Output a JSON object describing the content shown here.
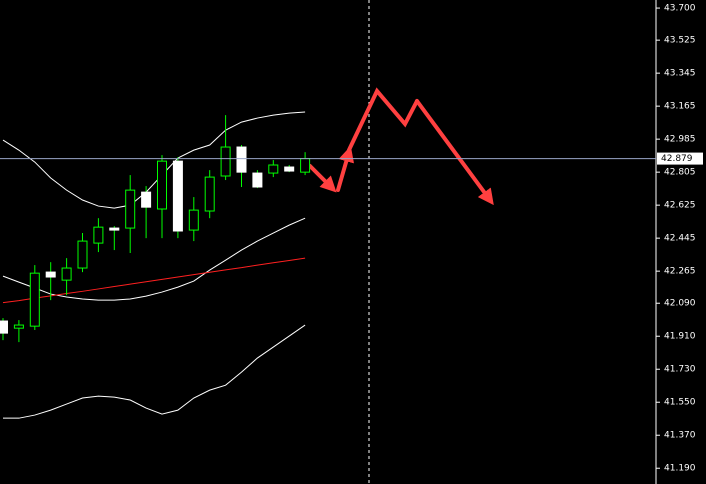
{
  "chart_data": {
    "type": "candlestick",
    "categories": [
      null,
      null,
      null,
      null,
      null,
      null,
      null,
      null,
      null,
      null,
      null,
      null,
      null,
      null,
      null,
      null,
      null,
      null,
      null,
      null
    ],
    "open": [
      41.993,
      41.954,
      41.965,
      42.26,
      42.216,
      42.282,
      42.418,
      42.5,
      42.5,
      42.696,
      42.604,
      42.865,
      42.489,
      42.593,
      42.784,
      42.942,
      42.8,
      42.8,
      42.833,
      42.805
    ],
    "high": [
      42.009,
      41.998,
      42.298,
      42.314,
      42.336,
      42.473,
      42.554,
      42.511,
      42.789,
      42.729,
      42.898,
      42.887,
      42.669,
      42.816,
      43.116,
      42.953,
      42.816,
      42.871,
      42.844,
      42.914
    ],
    "low": [
      41.889,
      41.878,
      41.944,
      42.107,
      42.134,
      42.26,
      42.369,
      42.38,
      42.364,
      42.445,
      42.445,
      42.445,
      42.429,
      42.554,
      42.762,
      42.724,
      42.718,
      42.778,
      42.805,
      42.789
    ],
    "close": [
      41.927,
      41.971,
      42.254,
      42.233,
      42.282,
      42.429,
      42.505,
      42.489,
      42.707,
      42.614,
      42.865,
      42.484,
      42.598,
      42.778,
      42.942,
      42.805,
      42.724,
      42.844,
      42.811,
      42.879
    ],
    "up_color": "#00ff00",
    "down_color": "#ffffff",
    "lines": [
      {
        "color": "#ffffff",
        "values": [
          42.98,
          42.925,
          42.86,
          42.773,
          42.707,
          42.653,
          42.62,
          42.609,
          42.625,
          42.696,
          42.789,
          42.882,
          42.925,
          42.953,
          43.034,
          43.078,
          43.1,
          43.116,
          43.127,
          43.133
        ]
      },
      {
        "color": "#ffffff",
        "values": [
          42.238,
          42.205,
          42.173,
          42.14,
          42.124,
          42.113,
          42.107,
          42.107,
          42.113,
          42.129,
          42.151,
          42.178,
          42.211,
          42.271,
          42.325,
          42.38,
          42.429,
          42.473,
          42.516,
          42.554
        ]
      },
      {
        "color": "#ffffff",
        "values": [
          41.463,
          41.463,
          41.48,
          41.507,
          41.54,
          41.573,
          41.583,
          41.578,
          41.562,
          41.518,
          41.485,
          41.507,
          41.573,
          41.616,
          41.643,
          41.714,
          41.791,
          41.851,
          41.911,
          41.971
        ]
      },
      {
        "color": "#ff2020",
        "values": [
          42.093,
          42.104,
          42.118,
          42.13,
          42.143,
          42.155,
          42.168,
          42.181,
          42.194,
          42.207,
          42.22,
          42.233,
          42.246,
          42.259,
          42.272,
          42.284,
          42.298,
          42.311,
          42.323,
          42.336
        ]
      }
    ],
    "current_price": 42.879,
    "current_price_color": "#9aa6c8",
    "ylim": [
      41.104,
      43.744
    ],
    "yticks": [
      {
        "value": 43.7,
        "label": "43.700"
      },
      {
        "value": 43.525,
        "label": "43.525"
      },
      {
        "value": 43.345,
        "label": "43.345"
      },
      {
        "value": 43.165,
        "label": "43.165"
      },
      {
        "value": 42.985,
        "label": "42.985"
      },
      {
        "value": 42.805,
        "label": "42.805"
      },
      {
        "value": 42.625,
        "label": "42.625"
      },
      {
        "value": 42.445,
        "label": "42.445"
      },
      {
        "value": 42.265,
        "label": "42.265"
      },
      {
        "value": 42.09,
        "label": "42.090"
      },
      {
        "value": 41.91,
        "label": "41.910"
      },
      {
        "value": 41.73,
        "label": "41.730"
      },
      {
        "value": 41.55,
        "label": "41.550"
      },
      {
        "value": 41.37,
        "label": "41.370"
      },
      {
        "value": 41.19,
        "label": "41.190"
      }
    ]
  }
}
